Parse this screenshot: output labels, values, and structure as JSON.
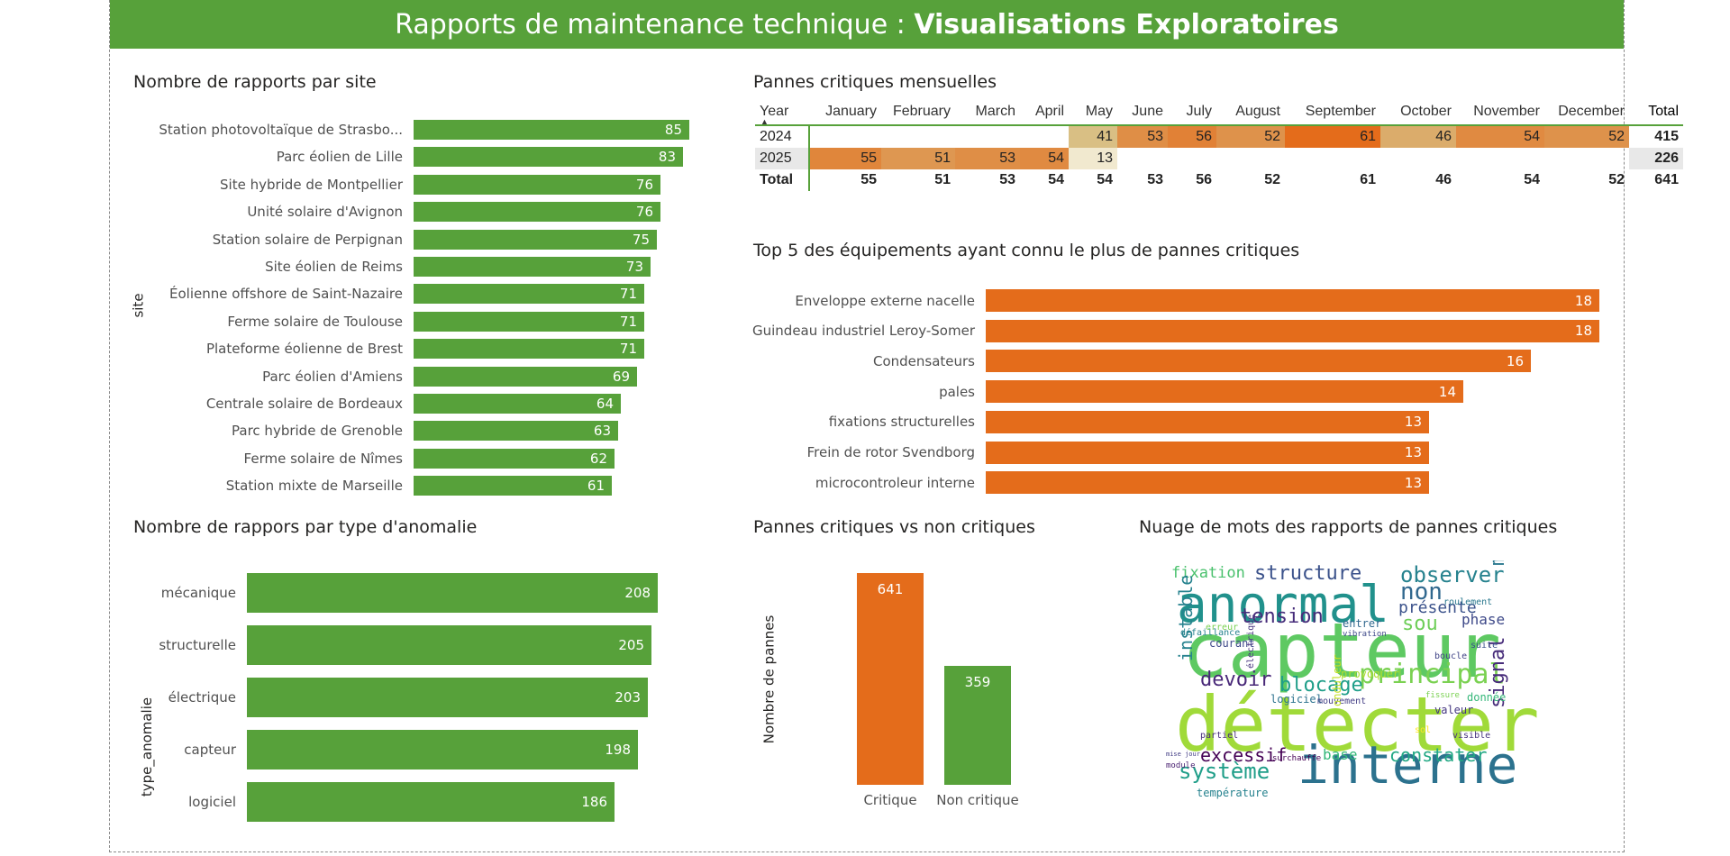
{
  "header": {
    "title_regular": "Rapports de maintenance technique : ",
    "title_bold": "Visualisations Exploratoires"
  },
  "colors": {
    "green": "#57a13a",
    "orange": "#e46c1b"
  },
  "sites_chart": {
    "title": "Nombre de rapports par site",
    "axis_title": "site",
    "chart_data": {
      "type": "bar",
      "categories": [
        "Station photovoltaïque de Strasbo...",
        "Parc éolien de Lille",
        "Site hybride de Montpellier",
        "Unité solaire d'Avignon",
        "Station solaire de Perpignan",
        "Site éolien de Reims",
        "Éolienne offshore de Saint-Nazaire",
        "Ferme solaire de Toulouse",
        "Plateforme éolienne de Brest",
        "Parc éolien d'Amiens",
        "Centrale solaire de Bordeaux",
        "Parc hybride de Grenoble",
        "Ferme solaire de Nîmes",
        "Station mixte de Marseille"
      ],
      "values": [
        85,
        83,
        76,
        76,
        75,
        73,
        71,
        71,
        71,
        69,
        64,
        63,
        62,
        61
      ],
      "ylabel": "site"
    }
  },
  "matrix": {
    "title": "Pannes critiques mensuelles",
    "columns": [
      "Year",
      "January",
      "February",
      "March",
      "April",
      "May",
      "June",
      "July",
      "August",
      "September",
      "October",
      "November",
      "December",
      "Total"
    ],
    "rows": [
      {
        "year": "2024",
        "values": [
          "",
          "",
          "",
          "",
          "41",
          "53",
          "56",
          "52",
          "61",
          "46",
          "54",
          "52"
        ],
        "total": "415"
      },
      {
        "year": "2025",
        "values": [
          "55",
          "51",
          "53",
          "54",
          "13",
          "",
          "",
          "",
          "",
          "",
          "",
          ""
        ],
        "total": "226"
      }
    ],
    "total_row": {
      "label": "Total",
      "values": [
        "55",
        "51",
        "53",
        "54",
        "54",
        "53",
        "56",
        "52",
        "61",
        "46",
        "54",
        "52"
      ],
      "total": "641"
    }
  },
  "top5_chart": {
    "title": "Top 5 des équipements ayant connu le plus de pannes critiques",
    "chart_data": {
      "type": "bar",
      "categories": [
        "Enveloppe externe nacelle",
        "Guindeau industriel Leroy-Somer",
        "Condensateurs",
        "pales",
        "fixations structurelles",
        "Frein de rotor Svendborg",
        "microcontroleur interne"
      ],
      "values": [
        18,
        18,
        16,
        14,
        13,
        13,
        13
      ]
    }
  },
  "anomaly_chart": {
    "title": "Nombre de rappors par type d'anomalie",
    "axis_title": "type_anomalie",
    "chart_data": {
      "type": "bar",
      "categories": [
        "mécanique",
        "structurelle",
        "électrique",
        "capteur",
        "logiciel"
      ],
      "values": [
        208,
        205,
        203,
        198,
        186
      ],
      "ylabel": "type_anomalie"
    }
  },
  "crit_chart": {
    "title": "Pannes critiques vs non critiques",
    "axis_title": "Nombre de pannes",
    "chart_data": {
      "type": "bar",
      "categories": [
        "Critique",
        "Non critique"
      ],
      "values": [
        641,
        359
      ],
      "ylabel": "Nombre de pannes"
    }
  },
  "wordcloud": {
    "title": "Nuage de mots des rapports de pannes critiques",
    "words": [
      {
        "text": "capteur",
        "color": "#5ec962"
      },
      {
        "text": "détecter",
        "color": "#a0da39"
      },
      {
        "text": "anormal",
        "color": "#21918c"
      },
      {
        "text": "interne",
        "color": "#2c728e"
      },
      {
        "text": "principal",
        "color": "#7ad151"
      },
      {
        "text": "observer",
        "color": "#26828e"
      },
      {
        "text": "structure",
        "color": "#3b528b"
      },
      {
        "text": "fixation",
        "color": "#4ac16d"
      },
      {
        "text": "non",
        "color": "#31688e"
      },
      {
        "text": "présente",
        "color": "#3b528b"
      },
      {
        "text": "mécanique",
        "color": "#2a788e"
      },
      {
        "text": "tension",
        "color": "#472d7b"
      },
      {
        "text": "sou",
        "color": "#6ece58"
      },
      {
        "text": "phase",
        "color": "#3e4989"
      },
      {
        "text": "instable",
        "color": "#26828e"
      },
      {
        "text": "devoir",
        "color": "#482878"
      },
      {
        "text": "blocage",
        "color": "#1f9e89"
      },
      {
        "text": "signal",
        "color": "#472c7a"
      },
      {
        "text": "excessif",
        "color": "#440154"
      },
      {
        "text": "base",
        "color": "#35b779"
      },
      {
        "text": "constater",
        "color": "#22a884"
      },
      {
        "text": "système",
        "color": "#1f9e89"
      },
      {
        "text": "courant",
        "color": "#3e4989"
      },
      {
        "text": "entrer",
        "color": "#31688e"
      },
      {
        "text": "défaillance",
        "color": "#26828e"
      },
      {
        "text": "vibration",
        "color": "#3e4989"
      },
      {
        "text": "erreur",
        "color": "#7ad151"
      },
      {
        "text": "provoquer",
        "color": "#addc30"
      },
      {
        "text": "roulement",
        "color": "#2a788e"
      },
      {
        "text": "suite",
        "color": "#3b528b"
      },
      {
        "text": "boucle",
        "color": "#414487"
      },
      {
        "text": "électrique",
        "color": "#46337e"
      },
      {
        "text": "logiciel",
        "color": "#2c728e"
      },
      {
        "text": "mouvement",
        "color": "#433e85"
      },
      {
        "text": "fissure",
        "color": "#7ad151"
      },
      {
        "text": "valeur",
        "color": "#453781"
      },
      {
        "text": "donnée",
        "color": "#35b779"
      },
      {
        "text": "onduleur",
        "color": "#c2df23"
      },
      {
        "text": "partiel",
        "color": "#472d7b"
      },
      {
        "text": "visible",
        "color": "#46337e"
      },
      {
        "text": "sol",
        "color": "#fde725"
      },
      {
        "text": "surchauffe",
        "color": "#440154"
      },
      {
        "text": "module",
        "color": "#481f70"
      },
      {
        "text": "mise jour",
        "color": "#433e85"
      },
      {
        "text": "température",
        "color": "#26828e"
      }
    ]
  }
}
